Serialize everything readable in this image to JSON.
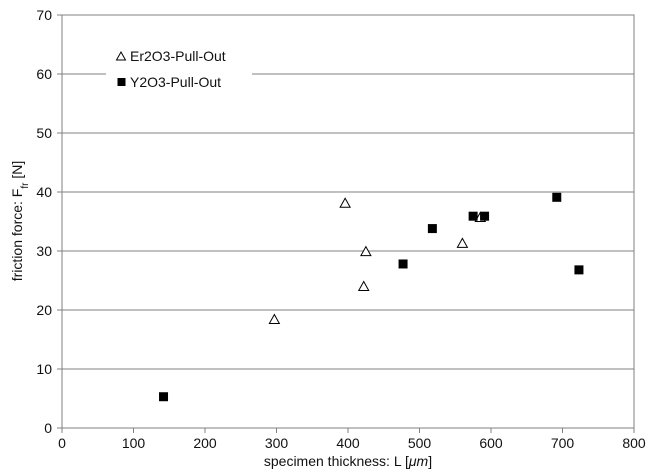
{
  "chart_data": {
    "type": "scatter",
    "xlabel": {
      "prefix": "specimen thickness: L [",
      "unit": "μm",
      "suffix": "]"
    },
    "ylabel": {
      "prefix": "friction force: F",
      "subscript": "fr",
      "suffix": " [N]"
    },
    "xlim": [
      0,
      800
    ],
    "ylim": [
      0,
      70
    ],
    "xticks": [
      0,
      100,
      200,
      300,
      400,
      500,
      600,
      700,
      800
    ],
    "yticks": [
      0,
      10,
      20,
      30,
      40,
      50,
      60,
      70
    ],
    "grid": "horizontal",
    "legend_position": "top-left",
    "series": [
      {
        "name": "Er2O3-Pull-Out",
        "marker": "open-triangle",
        "color": "#000000",
        "points": [
          [
            297,
            18.3
          ],
          [
            396,
            38.0
          ],
          [
            422,
            23.9
          ],
          [
            425,
            29.8
          ],
          [
            560,
            31.2
          ],
          [
            585,
            35.6
          ]
        ]
      },
      {
        "name": "Y2O3-Pull-Out",
        "marker": "filled-square",
        "color": "#000000",
        "points": [
          [
            142,
            5.3
          ],
          [
            477,
            27.8
          ],
          [
            518,
            33.8
          ],
          [
            575,
            35.9
          ],
          [
            591,
            35.9
          ],
          [
            692,
            39.1
          ],
          [
            723,
            26.8
          ]
        ]
      }
    ]
  }
}
